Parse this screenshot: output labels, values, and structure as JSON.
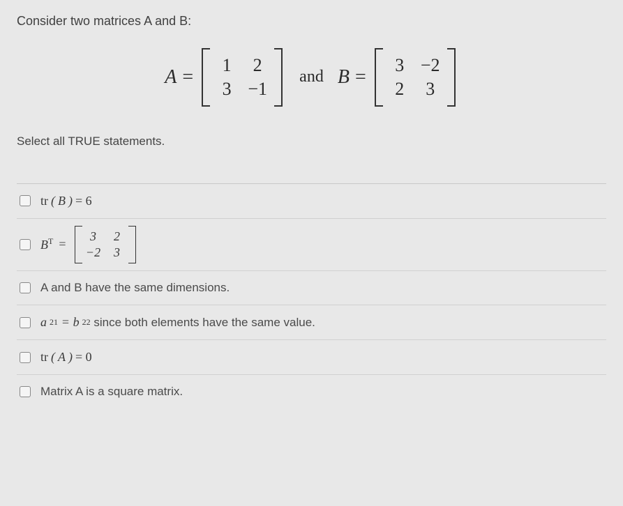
{
  "question": {
    "prompt": "Consider two matrices A and B:",
    "instructions": "Select all TRUE statements."
  },
  "equation": {
    "A": {
      "label": "A",
      "rows": [
        [
          "1",
          "2"
        ],
        [
          "3",
          "−1"
        ]
      ]
    },
    "connector": "and",
    "B": {
      "label": "B",
      "rows": [
        [
          "3",
          "−2"
        ],
        [
          "2",
          "3"
        ]
      ]
    }
  },
  "options": {
    "o1": {
      "tr_label": "tr",
      "var": "B",
      "eq": "= 6"
    },
    "o2": {
      "lhs": "B",
      "sup": "T",
      "eq": "=",
      "matrix": [
        [
          "3",
          "2"
        ],
        [
          "−2",
          "3"
        ]
      ]
    },
    "o3": {
      "text": "A and B have the same dimensions."
    },
    "o4": {
      "a": "a",
      "a_sub": "21",
      "eq": "=",
      "b": "b",
      "b_sub": "22",
      "rest": "since both elements have the same value."
    },
    "o5": {
      "tr_label": "tr",
      "var": "A",
      "eq": "= 0"
    },
    "o6": {
      "text": "Matrix A is a square matrix."
    }
  },
  "style": {
    "background": "#e8e8e8",
    "text_color": "#3a3a3a",
    "border_color": "#d0d0d0",
    "question_fontsize": 18,
    "equation_fontsize": 28,
    "option_fontsize": 17
  }
}
